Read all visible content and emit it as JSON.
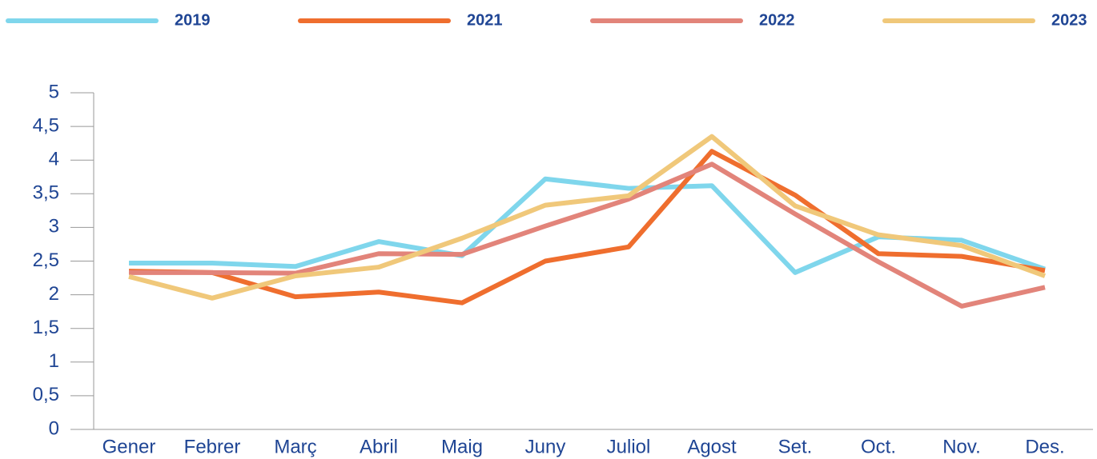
{
  "chart_data": {
    "type": "line",
    "categories": [
      "Gener",
      "Febrer",
      "Març",
      "Abril",
      "Maig",
      "Juny",
      "Juliol",
      "Agost",
      "Set.",
      "Oct.",
      "Nov.",
      "Des."
    ],
    "series": [
      {
        "name": "2019",
        "color": "#7fd6ec",
        "values": [
          2.47,
          2.47,
          2.42,
          2.79,
          2.58,
          3.72,
          3.58,
          3.62,
          2.33,
          2.86,
          2.81,
          2.38
        ]
      },
      {
        "name": "2021",
        "color": "#ef6e2e",
        "values": [
          2.35,
          2.33,
          1.97,
          2.04,
          1.88,
          2.5,
          2.71,
          4.13,
          3.48,
          2.61,
          2.57,
          2.36
        ]
      },
      {
        "name": "2022",
        "color": "#e2847a",
        "values": [
          2.33,
          2.33,
          2.32,
          2.61,
          2.6,
          3.02,
          3.42,
          3.94,
          3.2,
          2.49,
          1.83,
          2.11
        ]
      },
      {
        "name": "2023",
        "color": "#f0c87a",
        "values": [
          2.27,
          1.95,
          2.28,
          2.41,
          2.84,
          3.33,
          3.47,
          4.35,
          3.32,
          2.89,
          2.73,
          2.28
        ]
      }
    ],
    "ylim": [
      0,
      5
    ],
    "yticks": [
      0,
      {
        "value": 0.5,
        "label": "0,5"
      },
      1,
      {
        "value": 1.5,
        "label": "1,5"
      },
      2,
      {
        "value": 2.5,
        "label": "2,5"
      },
      3,
      {
        "value": 3.5,
        "label": "3,5"
      },
      4,
      {
        "value": 4.5,
        "label": "4,5"
      },
      5
    ],
    "legend": "top"
  }
}
